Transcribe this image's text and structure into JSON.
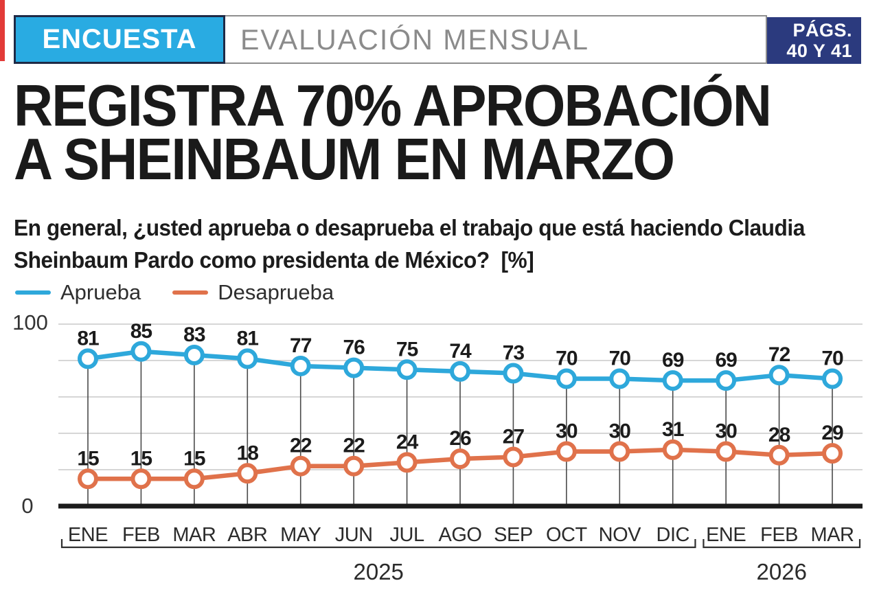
{
  "header": {
    "badge_label": "ENCUESTA",
    "section_label": "EVALUACIÓN MENSUAL",
    "pages_line1": "PÁGS.",
    "pages_line2": "40 Y 41",
    "badge_color": "#29ABE2",
    "pages_bg_color": "#2B3A7E",
    "accent_red": "#E23B38"
  },
  "headline": {
    "line1": "REGISTRA 70% APROBACIÓN",
    "line2": "A SHEINBAUM EN MARZO"
  },
  "question": {
    "line1": "En general, ¿usted aprueba o desaprueba el trabajo que está haciendo Claudia",
    "line2": "Sheinbaum Pardo como presidenta de México?  [%]"
  },
  "legend": [
    {
      "label": "Aprueba",
      "color": "#2EA8DB"
    },
    {
      "label": "Desaprueba",
      "color": "#E0724B"
    }
  ],
  "chart_data": {
    "type": "line",
    "title": "",
    "xlabel": "",
    "ylabel": "",
    "categories": [
      "ENE",
      "FEB",
      "MAR",
      "ABR",
      "MAY",
      "JUN",
      "JUL",
      "AGO",
      "SEP",
      "OCT",
      "NOV",
      "DIC",
      "ENE",
      "FEB",
      "MAR"
    ],
    "series": [
      {
        "name": "Aprueba",
        "color": "#2EA8DB",
        "values": [
          81,
          85,
          83,
          81,
          77,
          76,
          75,
          74,
          73,
          70,
          70,
          69,
          69,
          72,
          70
        ]
      },
      {
        "name": "Desaprueba",
        "color": "#E0724B",
        "values": [
          15,
          15,
          15,
          18,
          22,
          22,
          24,
          26,
          27,
          30,
          30,
          31,
          30,
          28,
          29
        ]
      }
    ],
    "year_groups": [
      {
        "label": "2025",
        "from": 0,
        "to": 11
      },
      {
        "label": "2026",
        "from": 12,
        "to": 14
      }
    ],
    "ylim": [
      0,
      100
    ],
    "yticks_labeled": [
      0,
      100
    ],
    "gridline_values": [
      20,
      40,
      60,
      80,
      100
    ],
    "grid": true,
    "legend_position": "top-left",
    "grid_color": "#C8C8C8",
    "stem_color": "#4A4A4A",
    "baseline_color": "#1B1B1B",
    "label_color": "#1B1B1B"
  }
}
